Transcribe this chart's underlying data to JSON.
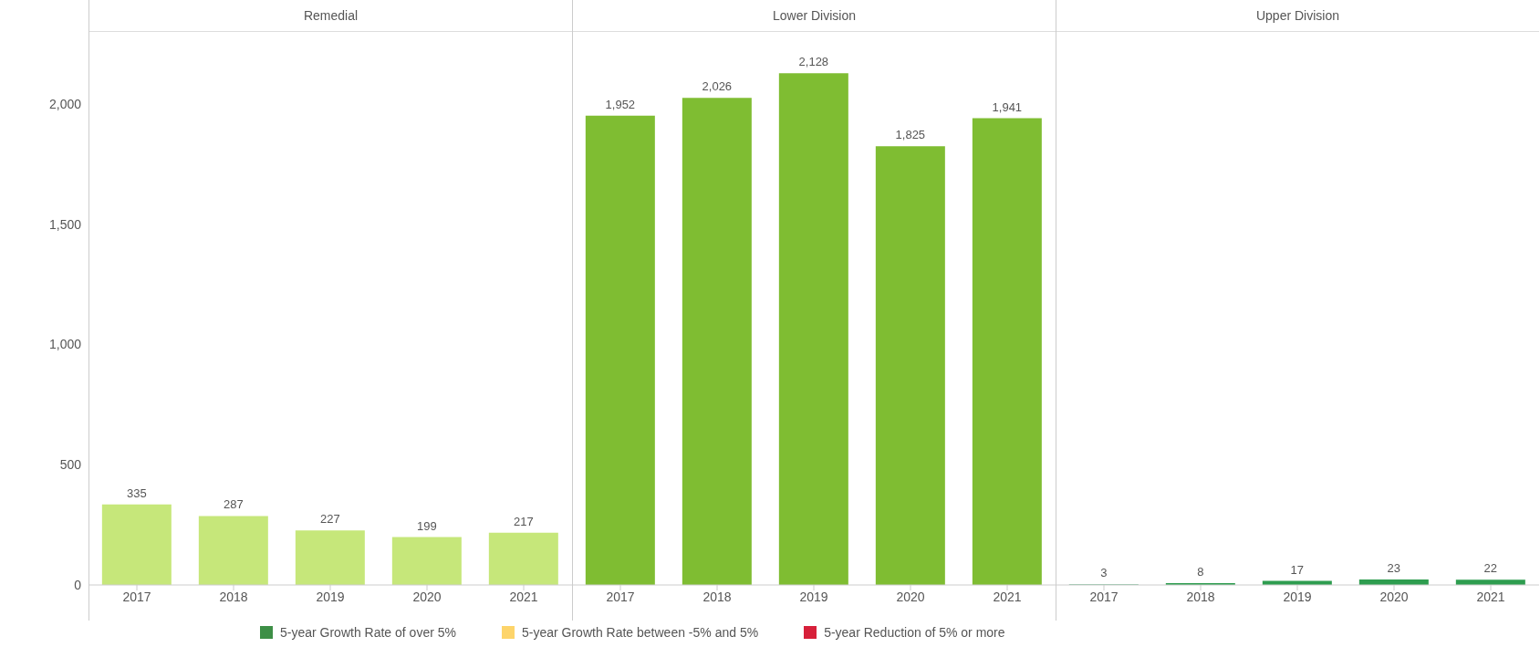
{
  "chart_data": [
    {
      "type": "bar",
      "title": "Remedial",
      "categories": [
        "2017",
        "2018",
        "2019",
        "2020",
        "2021"
      ],
      "values": [
        335,
        287,
        227,
        199,
        217
      ],
      "color": "#c6e77a",
      "ylim": [
        0,
        2300
      ],
      "yticks": [
        0,
        500,
        {
          "value": 1000,
          "label": "1,000"
        },
        {
          "value": 1500,
          "label": "1,500"
        },
        {
          "value": 2000,
          "label": "2,000"
        }
      ],
      "data_labels": true
    },
    {
      "type": "bar",
      "title": "Lower Division",
      "categories": [
        "2017",
        "2018",
        "2019",
        "2020",
        "2021"
      ],
      "values": [
        1952,
        2026,
        2128,
        1825,
        1941
      ],
      "value_labels": [
        "1,952",
        "2,026",
        "2,128",
        "1,825",
        "1,941"
      ],
      "color": "#7fbd32",
      "ylim": [
        0,
        2300
      ],
      "data_labels": true,
      "tick_labels": "x"
    },
    {
      "type": "bar",
      "title": "Upper Division",
      "categories": [
        "2017",
        "2018",
        "2019",
        "2020",
        "2021"
      ],
      "values": [
        3,
        8,
        17,
        23,
        22
      ],
      "colors": [
        "#5fb683",
        "#2e9d4f",
        "#2e9d4f",
        "#2e9d4f",
        "#2e9d4f"
      ],
      "ylim": [
        0,
        2300
      ],
      "data_labels": true,
      "tick_labels": "x"
    },
    {
      "type": "other",
      "categories": [
        "5-year Growth Rate of over 5%",
        "5-year Growth Rate between -5% and 5%",
        "5-year Reduction of 5% or more"
      ],
      "colors": [
        "#3d8f46",
        "#fdd46a",
        "#d7203a"
      ]
    }
  ]
}
